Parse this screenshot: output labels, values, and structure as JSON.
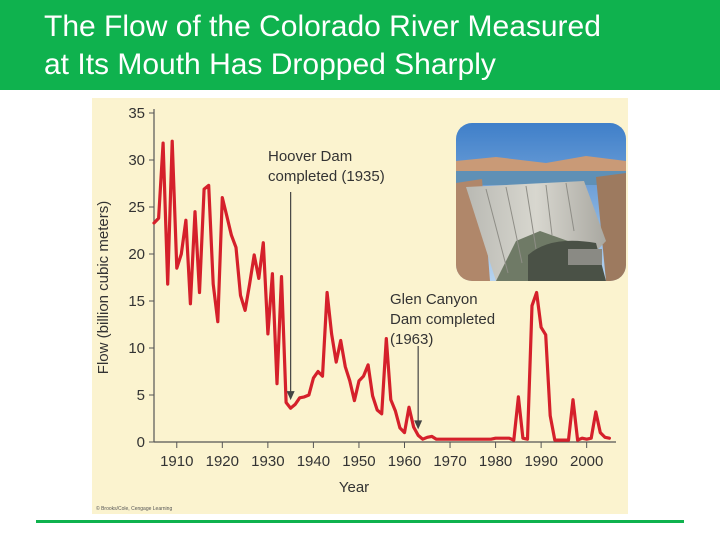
{
  "slide": {
    "title": "The Flow of the Colorado River Measured\nat Its Mouth Has Dropped Sharply",
    "colors": {
      "title_band": "#0fb24e",
      "title_text": "#ffffff",
      "rule": "#0fb24e"
    }
  },
  "chart_data": {
    "type": "line",
    "title": "",
    "xlabel": "Year",
    "ylabel": "Flow (billion cubic meters)",
    "xlim": [
      1905,
      2006
    ],
    "ylim": [
      0,
      35
    ],
    "xticks": [
      1910,
      1920,
      1930,
      1940,
      1950,
      1960,
      1970,
      1980,
      1990,
      2000
    ],
    "yticks": [
      0,
      5,
      10,
      15,
      20,
      25,
      30,
      35
    ],
    "grid": false,
    "legend": "none",
    "colors": {
      "line": "#d5202b",
      "background": "#fbf3cf",
      "axis": "#555555",
      "annotation": "#444444"
    },
    "series": [
      {
        "x": [
          1905,
          1906,
          1907,
          1908,
          1909,
          1910,
          1911,
          1912,
          1913,
          1914,
          1915,
          1916,
          1917,
          1918,
          1919,
          1920,
          1921,
          1922,
          1923,
          1924,
          1925,
          1926,
          1927,
          1928,
          1929,
          1930,
          1931,
          1932,
          1933,
          1934,
          1935,
          1936,
          1937,
          1938,
          1939,
          1940,
          1941,
          1942,
          1943,
          1944,
          1945,
          1946,
          1947,
          1948,
          1949,
          1950,
          1951,
          1952,
          1953,
          1954,
          1955,
          1956,
          1957,
          1958,
          1959,
          1960,
          1961,
          1962,
          1963,
          1964,
          1965,
          1966,
          1967,
          1968,
          1969,
          1970,
          1971,
          1972,
          1973,
          1974,
          1975,
          1976,
          1977,
          1978,
          1979,
          1980,
          1981,
          1982,
          1983,
          1984,
          1985,
          1986,
          1987,
          1988,
          1989,
          1990,
          1991,
          1992,
          1993,
          1994,
          1995,
          1996,
          1997,
          1998,
          1999,
          2000,
          2001,
          2002,
          2003,
          2004,
          2005
        ],
        "y": [
          23.3,
          23.8,
          31.8,
          16.8,
          32.0,
          18.5,
          20.0,
          23.6,
          14.7,
          24.5,
          15.9,
          26.9,
          27.3,
          16.8,
          12.8,
          26.0,
          24.0,
          22.0,
          20.7,
          15.6,
          14.0,
          16.8,
          19.9,
          17.4,
          21.2,
          11.5,
          17.9,
          6.2,
          17.6,
          4.2,
          3.6,
          4.0,
          4.7,
          4.8,
          5.0,
          6.8,
          7.5,
          7.0,
          15.9,
          11.5,
          8.5,
          10.8,
          8.0,
          6.5,
          4.4,
          6.5,
          7.0,
          8.2,
          4.9,
          3.4,
          3.0,
          11.0,
          4.5,
          3.3,
          1.5,
          1.0,
          3.7,
          1.6,
          0.7,
          0.3,
          0.5,
          0.6,
          0.3,
          0.3,
          0.3,
          0.3,
          0.3,
          0.3,
          0.3,
          0.3,
          0.3,
          0.3,
          0.3,
          0.3,
          0.3,
          0.4,
          0.4,
          0.4,
          0.4,
          0.2,
          4.8,
          0.4,
          0.3,
          14.5,
          15.9,
          12.2,
          11.4,
          2.8,
          0.2,
          0.2,
          0.2,
          0.2,
          4.5,
          0.2,
          0.4,
          0.3,
          0.4,
          3.2,
          1.0,
          0.5,
          0.4
        ]
      }
    ],
    "annotations": [
      {
        "text": "Hoover Dam\ncompleted (1935)",
        "target_year": 1935
      },
      {
        "text": "Glen Canyon\nDam completed\n(1963)",
        "target_year": 1963
      }
    ],
    "inset_photo": "hoover-dam-photo",
    "credit": "© Brooks/Cole, Cengage Learning"
  }
}
